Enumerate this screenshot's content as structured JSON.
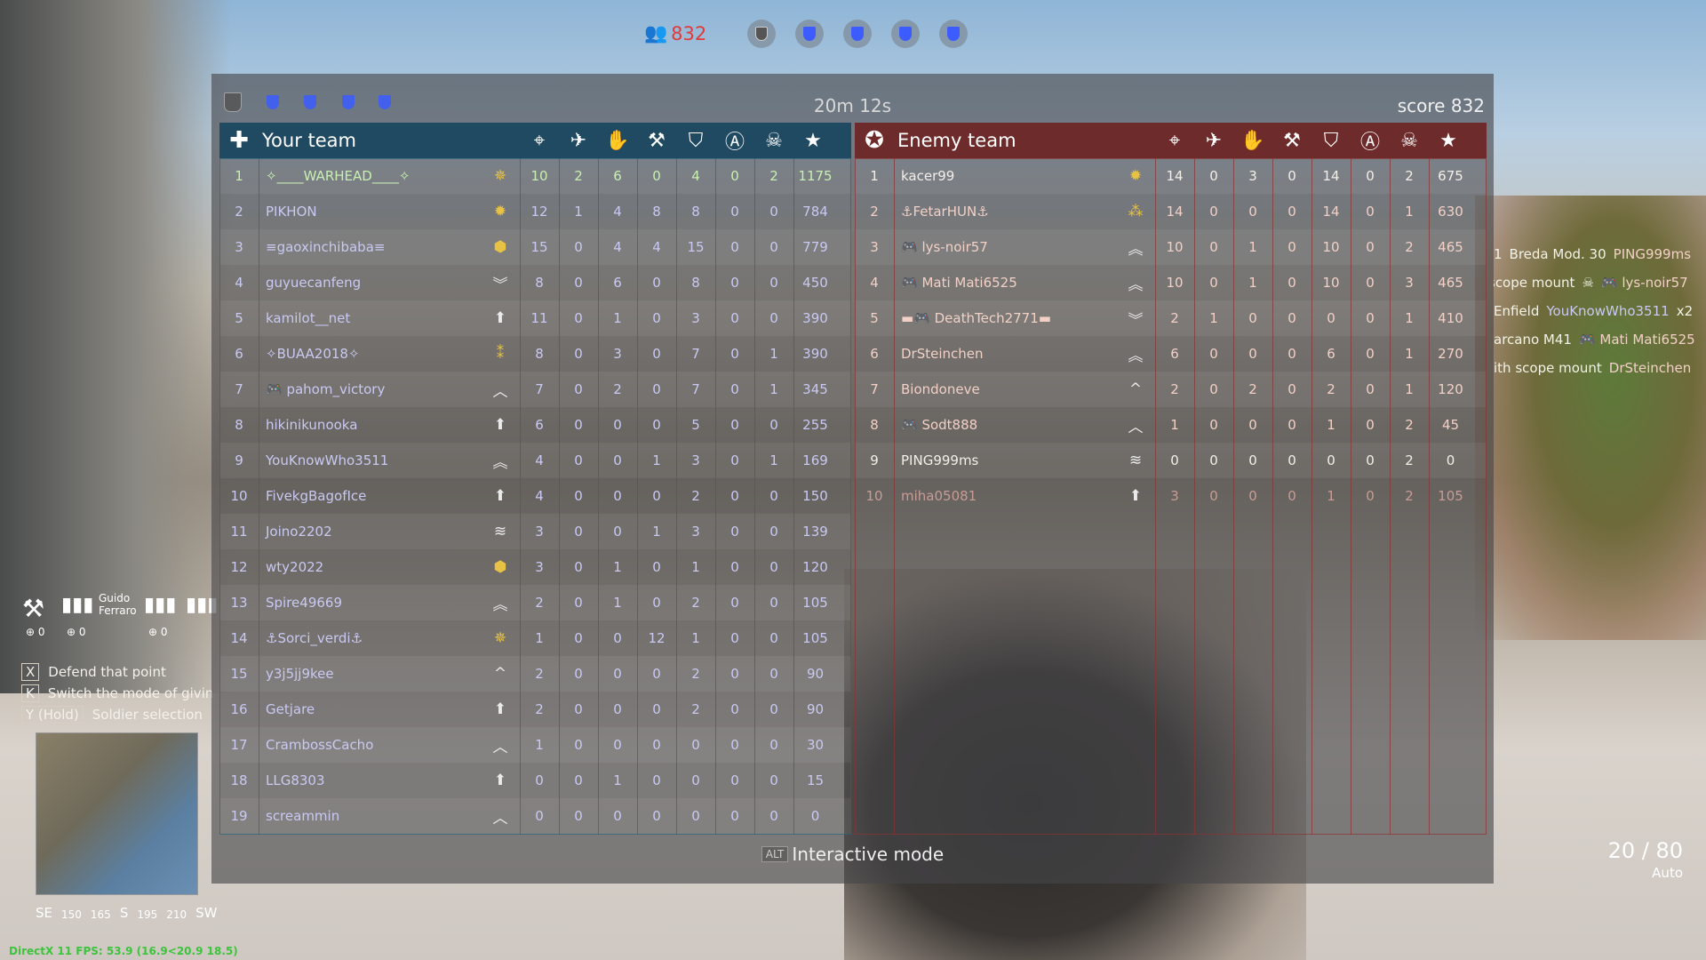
{
  "top": {
    "players_remaining": "832",
    "players_icon": "players-icon",
    "flags": [
      {
        "state": "neutral",
        "icon": "artillery-flag-icon"
      },
      {
        "state": "ally",
        "icon": "shield-flag-icon"
      },
      {
        "state": "ally",
        "icon": "shield-flag-icon"
      },
      {
        "state": "ally",
        "icon": "shield-flag-icon"
      },
      {
        "state": "ally",
        "icon": "shield-flag-icon"
      }
    ]
  },
  "scoreboard": {
    "timer": "20m 12s",
    "score": "score 832",
    "columns": [
      {
        "icon": "crosshair-icon",
        "glyph": "⌖"
      },
      {
        "icon": "vehicle-kill-icon",
        "glyph": "✈"
      },
      {
        "icon": "assist-hand-icon",
        "glyph": "✋"
      },
      {
        "icon": "wrench-icon",
        "glyph": "⚒"
      },
      {
        "icon": "shield-a-icon",
        "glyph": "⛉"
      },
      {
        "icon": "circle-a-icon",
        "glyph": "Ⓐ"
      },
      {
        "icon": "skull-icon",
        "glyph": "☠"
      },
      {
        "icon": "star-icon",
        "glyph": "★"
      }
    ],
    "your_team": {
      "title": "Your team",
      "emblem": "iron-cross-icon",
      "color": "#1f4a62",
      "rows": [
        {
          "rank": "1",
          "name": "✧____WARHEAD____✧",
          "rank_icon": "gold-star-rank",
          "stats": [
            "10",
            "2",
            "6",
            "0",
            "4",
            "0",
            "2",
            "1175"
          ]
        },
        {
          "rank": "2",
          "name": "PIKHON",
          "rank_icon": "gold-sun-rank",
          "stats": [
            "12",
            "1",
            "4",
            "8",
            "8",
            "0",
            "0",
            "784"
          ]
        },
        {
          "rank": "3",
          "name": "≡gaoxinchibaba≡",
          "rank_icon": "gold-hex-rank",
          "stats": [
            "15",
            "0",
            "4",
            "4",
            "15",
            "0",
            "0",
            "779"
          ]
        },
        {
          "rank": "4",
          "name": "guyuecanfeng",
          "rank_icon": "chevron-down-rank",
          "stats": [
            "8",
            "0",
            "6",
            "0",
            "8",
            "0",
            "0",
            "450"
          ]
        },
        {
          "rank": "5",
          "name": "kamilot__net",
          "rank_icon": "arrow-rank",
          "stats": [
            "11",
            "0",
            "1",
            "0",
            "3",
            "0",
            "0",
            "390"
          ]
        },
        {
          "rank": "6",
          "name": "✧BUAA2018✧",
          "rank_icon": "gold-double-star-rank",
          "stats": [
            "8",
            "0",
            "3",
            "0",
            "7",
            "0",
            "1",
            "390"
          ]
        },
        {
          "rank": "7",
          "name": "🎮 pahom_victory",
          "rank_icon": "outline-chevron-rank",
          "stats": [
            "7",
            "0",
            "2",
            "0",
            "7",
            "0",
            "1",
            "345"
          ]
        },
        {
          "rank": "8",
          "name": "hikinikunooka",
          "rank_icon": "arrow-rank",
          "stats": [
            "6",
            "0",
            "0",
            "0",
            "5",
            "0",
            "0",
            "255"
          ]
        },
        {
          "rank": "9",
          "name": "YouKnowWho3511",
          "rank_icon": "double-chevron-rank",
          "stats": [
            "4",
            "0",
            "0",
            "1",
            "3",
            "0",
            "1",
            "169"
          ]
        },
        {
          "rank": "10",
          "name": "FivekgBagofIce",
          "rank_icon": "arrow-rank",
          "stats": [
            "4",
            "0",
            "0",
            "0",
            "2",
            "0",
            "0",
            "150"
          ]
        },
        {
          "rank": "11",
          "name": "Joino2202",
          "rank_icon": "triple-chevron-rank",
          "stats": [
            "3",
            "0",
            "0",
            "1",
            "3",
            "0",
            "0",
            "139"
          ]
        },
        {
          "rank": "12",
          "name": "wty2022",
          "rank_icon": "gold-hex-rank",
          "stats": [
            "3",
            "0",
            "1",
            "0",
            "1",
            "0",
            "0",
            "120"
          ]
        },
        {
          "rank": "13",
          "name": "Spire49669",
          "rank_icon": "double-chevron-rank",
          "stats": [
            "2",
            "0",
            "1",
            "0",
            "2",
            "0",
            "0",
            "105"
          ]
        },
        {
          "rank": "14",
          "name": "⚓Sorci_verdi⚓",
          "rank_icon": "gold-star-rank",
          "stats": [
            "1",
            "0",
            "0",
            "12",
            "1",
            "0",
            "0",
            "105"
          ]
        },
        {
          "rank": "15",
          "name": "y3j5jj9kee",
          "rank_icon": "chevron-rank",
          "stats": [
            "2",
            "0",
            "0",
            "0",
            "2",
            "0",
            "0",
            "90"
          ]
        },
        {
          "rank": "16",
          "name": "Getjare",
          "rank_icon": "arrow-rank",
          "stats": [
            "2",
            "0",
            "0",
            "0",
            "2",
            "0",
            "0",
            "90"
          ]
        },
        {
          "rank": "17",
          "name": "CrambossCacho",
          "rank_icon": "outline-chevron-rank",
          "stats": [
            "1",
            "0",
            "0",
            "0",
            "0",
            "0",
            "0",
            "30"
          ]
        },
        {
          "rank": "18",
          "name": "LLG8303",
          "rank_icon": "arrow-rank",
          "stats": [
            "0",
            "0",
            "1",
            "0",
            "0",
            "0",
            "0",
            "15"
          ]
        },
        {
          "rank": "19",
          "name": "screammin",
          "rank_icon": "outline-chevron-rank",
          "stats": [
            "0",
            "0",
            "0",
            "0",
            "0",
            "0",
            "0",
            "0"
          ]
        }
      ]
    },
    "enemy_team": {
      "title": "Enemy team",
      "emblem": "star-roundel-icon",
      "color": "#6e2b2b",
      "rows": [
        {
          "rank": "1",
          "name": "kacer99",
          "rank_icon": "gold-sun-rank",
          "stats": [
            "14",
            "0",
            "3",
            "0",
            "14",
            "0",
            "2",
            "675"
          ]
        },
        {
          "rank": "2",
          "name": "⚓FetarHUN⚓",
          "rank_icon": "gold-triple-star-rank",
          "stats": [
            "14",
            "0",
            "0",
            "0",
            "14",
            "0",
            "1",
            "630"
          ]
        },
        {
          "rank": "3",
          "name": "🎮 lys-noir57",
          "rank_icon": "double-chevron-rank",
          "stats": [
            "10",
            "0",
            "1",
            "0",
            "10",
            "0",
            "2",
            "465"
          ]
        },
        {
          "rank": "4",
          "name": "🎮 Mati Mati6525",
          "rank_icon": "double-chevron-rank",
          "stats": [
            "10",
            "0",
            "1",
            "0",
            "10",
            "0",
            "3",
            "465"
          ]
        },
        {
          "rank": "5",
          "name": "▬🎮 DeathTech2771▬",
          "rank_icon": "chevron-down-rank",
          "stats": [
            "2",
            "1",
            "0",
            "0",
            "0",
            "0",
            "1",
            "410"
          ]
        },
        {
          "rank": "6",
          "name": "DrSteinchen",
          "rank_icon": "double-chevron-rank",
          "stats": [
            "6",
            "0",
            "0",
            "0",
            "6",
            "0",
            "1",
            "270"
          ]
        },
        {
          "rank": "7",
          "name": "Biondoneve",
          "rank_icon": "chevron-rank",
          "stats": [
            "2",
            "0",
            "2",
            "0",
            "2",
            "0",
            "1",
            "120"
          ]
        },
        {
          "rank": "8",
          "name": "🎮 Sodt888",
          "rank_icon": "outline-chevron-rank",
          "stats": [
            "1",
            "0",
            "0",
            "0",
            "1",
            "0",
            "2",
            "45"
          ]
        },
        {
          "rank": "9",
          "name": "PING999ms",
          "rank_icon": "triple-chevron-rank",
          "stats": [
            "0",
            "0",
            "0",
            "0",
            "0",
            "0",
            "2",
            "0"
          ]
        },
        {
          "rank": "10",
          "name": "miha05081",
          "rank_icon": "arrow-rank",
          "stats": [
            "3",
            "0",
            "0",
            "0",
            "1",
            "0",
            "2",
            "105"
          ]
        }
      ]
    },
    "interactive_hint": {
      "key": "ALT",
      "label": "Interactive mode"
    }
  },
  "killfeed": [
    {
      "a": "1",
      "weapon": "Breda Mod. 30",
      "victim": "PING999ms"
    },
    {
      "weapon": "scope mount",
      "victim": "🎮 lys-noir57"
    },
    {
      "weapon": "Enfield",
      "victim": "YouKnowWho3511",
      "count": "x2"
    },
    {
      "weapon": "arcano M41",
      "victim": "🎮 Mati Mati6525"
    },
    {
      "weapon": "ith scope mount",
      "victim": "DrSteinchen"
    }
  ],
  "squad": {
    "soldier_name_1": "Guido",
    "soldier_name_2": "Ferraro",
    "counts": [
      "0",
      "0",
      "0"
    ]
  },
  "orders": [
    {
      "key": "X",
      "label": "Defend that point"
    },
    {
      "key": "K",
      "label": "Switch the mode of giving"
    },
    {
      "key": "Y (Hold)",
      "label": "Soldier selection"
    }
  ],
  "compass": [
    "SE",
    "150",
    "165",
    "S",
    "195",
    "210",
    "SW"
  ],
  "fps": "DirectX 11 FPS: 53.9 (16.9<20.9 18.5)",
  "ammo": {
    "count": "20 / 80",
    "mode": "Auto"
  }
}
